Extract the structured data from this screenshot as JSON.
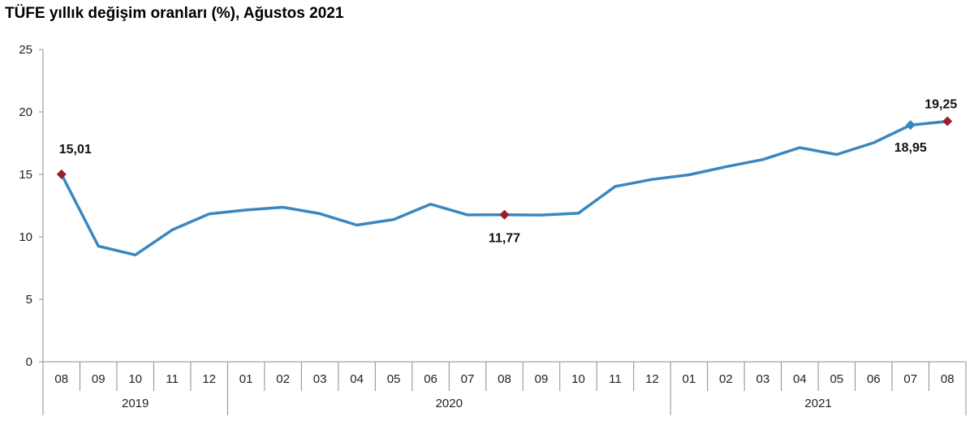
{
  "chart_data": {
    "type": "line",
    "title": "TÜFE yıllık değişim oranları (%), Ağustos 2021",
    "xlabel": "",
    "ylabel": "",
    "ylim": [
      0,
      25
    ],
    "yticks": [
      "0",
      "5",
      "10",
      "15",
      "20",
      "25"
    ],
    "categories": [
      "08",
      "09",
      "10",
      "11",
      "12",
      "01",
      "02",
      "03",
      "04",
      "05",
      "06",
      "07",
      "08",
      "09",
      "10",
      "11",
      "12",
      "01",
      "02",
      "03",
      "04",
      "05",
      "06",
      "07",
      "08"
    ],
    "year_groups": [
      {
        "label": "2019",
        "start": 0,
        "end": 4
      },
      {
        "label": "2020",
        "start": 5,
        "end": 16
      },
      {
        "label": "2021",
        "start": 17,
        "end": 24
      }
    ],
    "series": [
      {
        "name": "TÜFE yıllık değişim",
        "color": "#3a87c0",
        "values": [
          15.01,
          9.26,
          8.55,
          10.56,
          11.84,
          12.15,
          12.37,
          11.86,
          10.94,
          11.39,
          12.62,
          11.76,
          11.77,
          11.75,
          11.89,
          14.03,
          14.6,
          14.97,
          15.61,
          16.19,
          17.14,
          16.59,
          17.53,
          18.95,
          19.25
        ]
      }
    ],
    "highlights": [
      {
        "index": 0,
        "label": "15,01",
        "color": "#9b1c2e"
      },
      {
        "index": 12,
        "label": "11,77",
        "color": "#9b1c2e"
      },
      {
        "index": 23,
        "label": "18,95",
        "color": "#3a87c0"
      },
      {
        "index": 24,
        "label": "19,25",
        "color": "#9b1c2e"
      }
    ],
    "grid": false
  }
}
